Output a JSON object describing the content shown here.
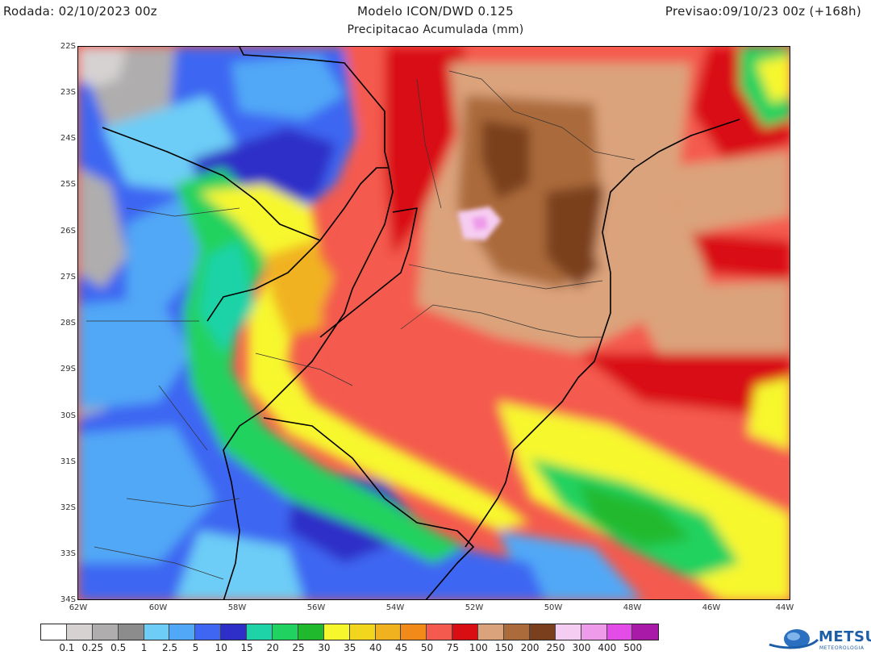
{
  "header": {
    "run": "Rodada: 02/10/2023 00z",
    "model": "Modelo ICON/DWD 0.125",
    "forecast": "Previsao:09/10/23 00z (+168h)",
    "subtitle": "Precipitacao Acumulada (mm)"
  },
  "axes": {
    "lat_labels": [
      "22S",
      "23S",
      "24S",
      "25S",
      "26S",
      "27S",
      "28S",
      "29S",
      "30S",
      "31S",
      "32S",
      "33S",
      "34S"
    ],
    "lon_labels": [
      "62W",
      "60W",
      "58W",
      "56W",
      "54W",
      "52W",
      "50W",
      "48W",
      "46W",
      "44W"
    ]
  },
  "colorbar": {
    "levels": [
      "0.1",
      "0.25",
      "0.5",
      "1",
      "2.5",
      "5",
      "10",
      "15",
      "20",
      "25",
      "30",
      "35",
      "40",
      "45",
      "50",
      "75",
      "100",
      "150",
      "200",
      "250",
      "300",
      "400",
      "500"
    ],
    "colors": [
      "#ffffff",
      "#d6d2d2",
      "#afadad",
      "#8c8c8c",
      "#6dcdf6",
      "#51a8f6",
      "#3e66f2",
      "#2d2fc8",
      "#1ed3a8",
      "#20d25f",
      "#20b92e",
      "#f7f72e",
      "#f1d61d",
      "#f1b220",
      "#f28a1a",
      "#f45a4e",
      "#d90e12",
      "#dba37c",
      "#ab6b3a",
      "#7a3f1c",
      "#f6cdf2",
      "#ee9be9",
      "#e34ce6",
      "#a91aa9"
    ]
  },
  "logo": {
    "name": "METSUL",
    "tagline": "METEOROLOGIA"
  }
}
